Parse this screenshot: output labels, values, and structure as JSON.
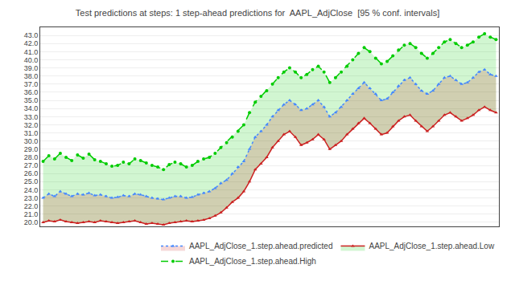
{
  "chart_data": {
    "type": "line",
    "title": "Test predictions at steps: 1 step-ahead predictions for  AAPL_AdjClose  [95 % conf. intervals]",
    "x": [
      0,
      1,
      2,
      3,
      4,
      5,
      6,
      7,
      8,
      9,
      10,
      11,
      12,
      13,
      14,
      15,
      16,
      17,
      18,
      19,
      20,
      21,
      22,
      23,
      24,
      25,
      26,
      27,
      28,
      29,
      30,
      31,
      32,
      33,
      34,
      35,
      36,
      37,
      38,
      39,
      40,
      41,
      42,
      43,
      44,
      45,
      46,
      47,
      48,
      49,
      50,
      51,
      52,
      53,
      54,
      55,
      56,
      57,
      58,
      59,
      60,
      61,
      62,
      63,
      64,
      65,
      66,
      67,
      68,
      69,
      70,
      71,
      72,
      73,
      74,
      75,
      76,
      77,
      78,
      79
    ],
    "series": [
      {
        "name": "AAPL_AdjClose_1.step.ahead.High",
        "color": "#00cc00",
        "line_style": "dashed",
        "marker": "circle",
        "values": [
          27.5,
          28.2,
          27.8,
          28.5,
          28.0,
          27.6,
          28.3,
          27.9,
          28.4,
          27.7,
          27.5,
          27.2,
          26.9,
          27.0,
          27.4,
          27.2,
          27.8,
          27.6,
          27.3,
          27.0,
          26.8,
          26.5,
          27.1,
          27.4,
          27.2,
          26.8,
          27.0,
          27.5,
          27.8,
          28.0,
          28.5,
          29.2,
          29.8,
          30.5,
          31.2,
          32.0,
          33.5,
          34.8,
          35.5,
          36.2,
          37.0,
          37.8,
          38.5,
          39.0,
          38.5,
          37.8,
          38.2,
          38.8,
          39.2,
          38.5,
          37.2,
          37.8,
          38.5,
          39.2,
          40.0,
          40.8,
          41.5,
          41.0,
          40.2,
          39.5,
          39.8,
          40.5,
          41.2,
          41.8,
          42.0,
          41.5,
          40.8,
          40.2,
          40.8,
          41.5,
          42.2,
          42.5,
          42.0,
          41.5,
          41.8,
          42.2,
          42.8,
          43.2,
          42.8,
          42.5
        ]
      },
      {
        "name": "AAPL_AdjClose_1.step.ahead.Low",
        "color": "#cc2222",
        "line_style": "solid",
        "marker": "triangle-up",
        "values": [
          20.0,
          20.2,
          20.1,
          20.3,
          20.1,
          20.0,
          19.9,
          20.0,
          20.1,
          20.0,
          20.2,
          20.1,
          20.0,
          19.9,
          20.0,
          20.1,
          20.2,
          20.0,
          19.8,
          19.9,
          19.8,
          19.7,
          19.9,
          20.0,
          20.1,
          20.2,
          20.1,
          20.2,
          20.3,
          20.5,
          20.8,
          21.2,
          21.8,
          22.5,
          23.0,
          23.8,
          25.0,
          26.5,
          27.2,
          28.0,
          29.2,
          30.0,
          30.8,
          31.2,
          30.5,
          29.5,
          29.8,
          30.2,
          30.8,
          30.2,
          29.0,
          29.5,
          30.0,
          30.8,
          31.5,
          32.2,
          32.8,
          32.2,
          31.5,
          30.8,
          31.0,
          31.8,
          32.5,
          33.0,
          33.2,
          32.5,
          31.8,
          31.2,
          31.8,
          32.5,
          33.2,
          33.5,
          33.0,
          32.5,
          32.8,
          33.2,
          33.8,
          34.2,
          33.8,
          33.5
        ]
      },
      {
        "name": "AAPL_AdjClose_1.step.ahead.predicted",
        "color": "#4488ff",
        "line_style": "dotted",
        "marker": "triangle-up",
        "values": [
          23.0,
          23.5,
          23.2,
          23.8,
          23.5,
          23.2,
          23.5,
          23.4,
          23.6,
          23.3,
          23.4,
          23.2,
          23.0,
          23.1,
          23.3,
          23.2,
          23.5,
          23.4,
          23.2,
          23.0,
          22.9,
          22.8,
          23.0,
          23.2,
          23.2,
          23.0,
          23.1,
          23.4,
          23.6,
          23.8,
          24.2,
          24.8,
          25.2,
          26.0,
          26.8,
          27.5,
          29.0,
          30.5,
          31.2,
          32.0,
          33.0,
          33.8,
          34.5,
          35.0,
          34.5,
          33.8,
          34.0,
          34.5,
          35.0,
          34.2,
          33.0,
          33.5,
          34.2,
          35.0,
          35.8,
          36.5,
          37.2,
          36.5,
          35.8,
          35.0,
          35.2,
          36.0,
          36.8,
          37.5,
          37.8,
          37.0,
          36.2,
          35.8,
          36.2,
          37.0,
          37.8,
          38.0,
          37.5,
          37.0,
          37.2,
          37.8,
          38.5,
          38.8,
          38.2,
          38.0
        ]
      }
    ],
    "xlim": [
      -0.5,
      79.5
    ],
    "xticks": [],
    "ylim": [
      19.5,
      44.0
    ],
    "yticks": [
      {
        "value": 20.0,
        "label": "20.0"
      },
      {
        "value": 21.0,
        "label": "21.0"
      },
      {
        "value": 22.0,
        "label": "22.0"
      },
      {
        "value": 23.0,
        "label": "23.0"
      },
      {
        "value": 24.0,
        "label": "24.0"
      },
      {
        "value": 25.0,
        "label": "25.0"
      },
      {
        "value": 26.0,
        "label": "26.0"
      },
      {
        "value": 27.0,
        "label": "27.0"
      },
      {
        "value": 28.0,
        "label": "28.0"
      },
      {
        "value": 29.0,
        "label": "29.0"
      },
      {
        "value": 30.0,
        "label": "30.0"
      },
      {
        "value": 31.0,
        "label": "31.0"
      },
      {
        "value": 32.0,
        "label": "32.0"
      },
      {
        "value": 33.0,
        "label": "33.0"
      },
      {
        "value": 34.0,
        "label": "34.0"
      },
      {
        "value": 35.0,
        "label": "35.0"
      },
      {
        "value": 36.0,
        "label": "36.0"
      },
      {
        "value": 37.0,
        "label": "37.0"
      },
      {
        "value": 38.0,
        "label": "38.0"
      },
      {
        "value": 39.0,
        "label": "39.0"
      },
      {
        "value": 40.0,
        "label": "40.0"
      },
      {
        "value": 41.0,
        "label": "41.0"
      },
      {
        "value": 42.0,
        "label": "42.0"
      },
      {
        "value": 43.0,
        "label": "43.0"
      }
    ],
    "grid": "y",
    "legend": "lower right",
    "tick_labels": "y"
  }
}
